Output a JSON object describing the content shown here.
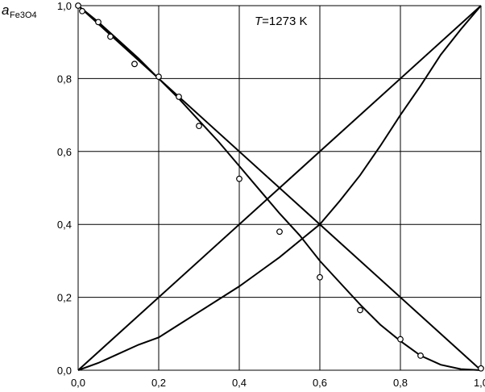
{
  "chart_data": {
    "type": "scatter",
    "title": "",
    "annotation": {
      "italic": "T",
      "rest": "=1273 K"
    },
    "ylabel": {
      "main": "a",
      "sub": "Fe3O4"
    },
    "xlabel": "",
    "xlim": [
      0.0,
      1.0
    ],
    "ylim": [
      0.0,
      1.0
    ],
    "xticks": [
      "0,0",
      "0,2",
      "0,4",
      "0,6",
      "0,8",
      "1,0"
    ],
    "yticks": [
      "0,0",
      "0,2",
      "0,4",
      "0,6",
      "0,8",
      "1,0"
    ],
    "grid": true,
    "series": [
      {
        "kind": "line",
        "x": [
          0,
          1
        ],
        "y": [
          1,
          0
        ]
      },
      {
        "kind": "line",
        "x": [
          0,
          1
        ],
        "y": [
          0,
          1
        ]
      },
      {
        "kind": "line",
        "x": [
          0.0,
          0.05,
          0.1,
          0.15,
          0.2,
          0.25,
          0.3,
          0.35,
          0.4,
          0.45,
          0.5,
          0.55,
          0.6,
          0.65,
          0.7,
          0.75,
          0.8,
          0.85,
          0.9,
          0.95,
          1.0
        ],
        "y": [
          1.0,
          0.955,
          0.905,
          0.855,
          0.8,
          0.745,
          0.685,
          0.625,
          0.56,
          0.495,
          0.43,
          0.37,
          0.3,
          0.24,
          0.18,
          0.125,
          0.08,
          0.04,
          0.015,
          0.003,
          0.0
        ]
      },
      {
        "kind": "line",
        "x": [
          0.0,
          0.05,
          0.1,
          0.15,
          0.2,
          0.25,
          0.3,
          0.35,
          0.4,
          0.45,
          0.5,
          0.55,
          0.6,
          0.65,
          0.7,
          0.75,
          0.8,
          0.85,
          0.9,
          0.95,
          1.0
        ],
        "y": [
          0.0,
          0.02,
          0.045,
          0.07,
          0.09,
          0.125,
          0.16,
          0.195,
          0.23,
          0.27,
          0.31,
          0.355,
          0.4,
          0.465,
          0.535,
          0.615,
          0.7,
          0.78,
          0.865,
          0.935,
          1.0
        ]
      },
      {
        "kind": "points",
        "x": [
          0.0,
          0.01,
          0.05,
          0.08,
          0.14,
          0.2,
          0.25,
          0.3,
          0.4,
          0.5,
          0.6,
          0.7,
          0.8,
          0.85,
          1.0
        ],
        "y": [
          1.0,
          0.985,
          0.955,
          0.915,
          0.84,
          0.805,
          0.75,
          0.67,
          0.525,
          0.38,
          0.255,
          0.165,
          0.085,
          0.04,
          0.005
        ]
      }
    ]
  }
}
